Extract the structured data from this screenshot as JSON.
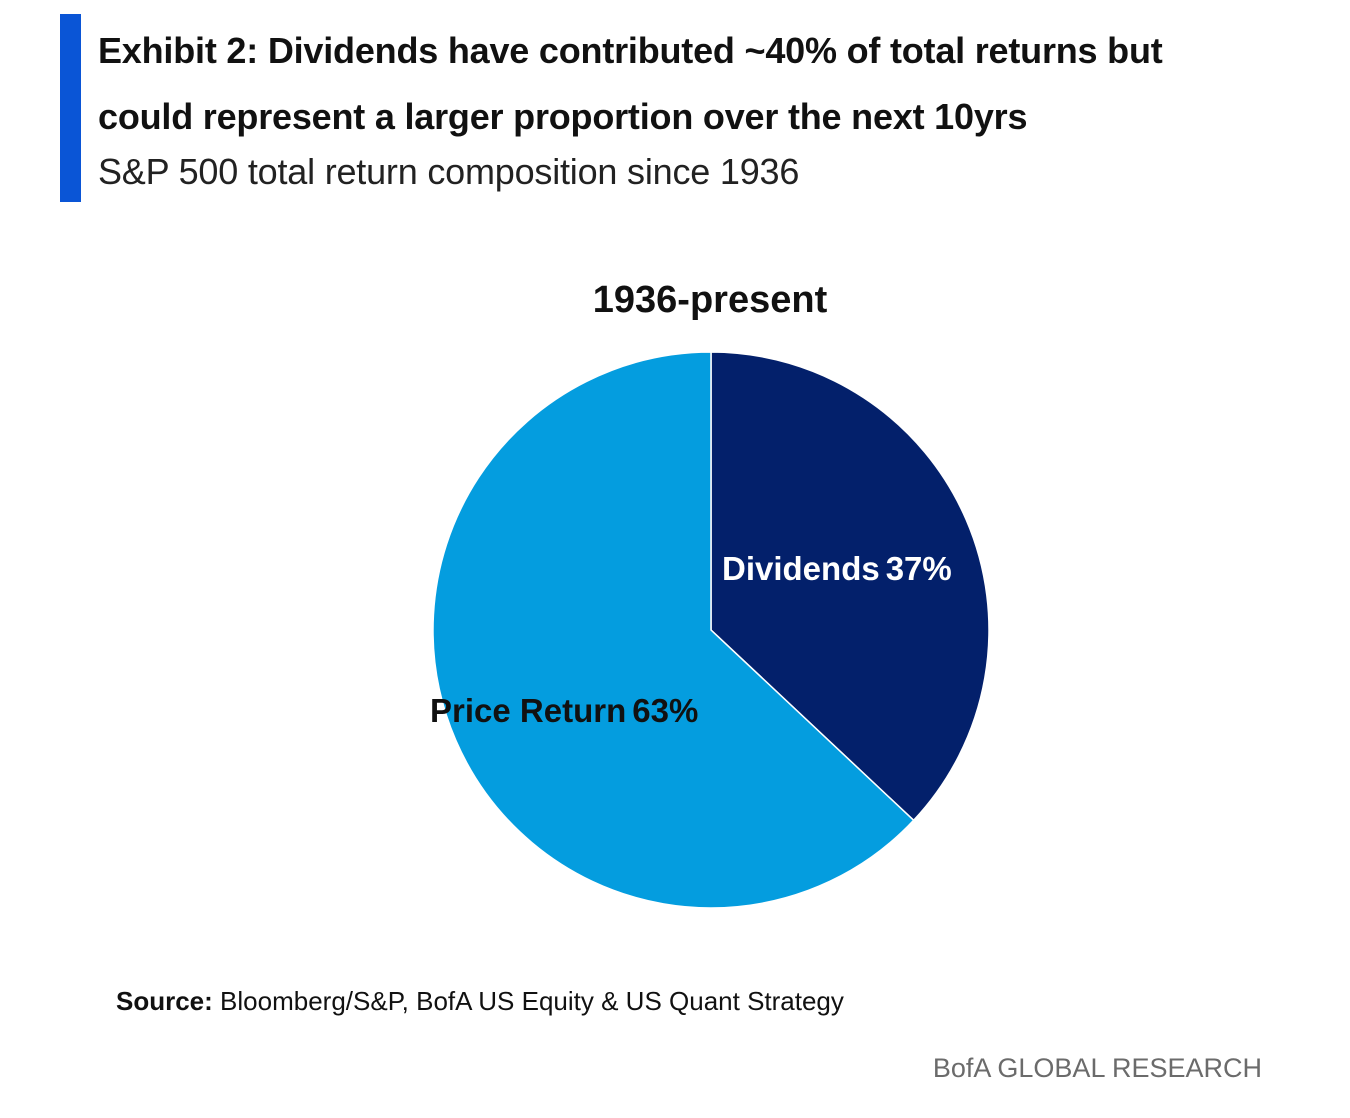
{
  "header": {
    "title_line1": "Exhibit 2: Dividends have contributed ~40% of total returns but",
    "title_line2": "could represent a larger proportion over the next 10yrs",
    "subtitle": "S&P 500 total return composition since 1936",
    "accent_color": "#0a55d6"
  },
  "chart_data": {
    "type": "pie",
    "title": "1936-present",
    "start_angle": "12 o'clock, clockwise",
    "slices": [
      {
        "label": "Dividends",
        "value": 37,
        "value_label": "37%",
        "color": "#03206b",
        "label_color": "#ffffff"
      },
      {
        "label": "Price Return",
        "value": 63,
        "value_label": "63%",
        "color": "#049ddf",
        "label_color": "#111111"
      }
    ],
    "legend": "none",
    "data_labels": "inside"
  },
  "footer": {
    "source_label": "Source:",
    "source_text": "Bloomberg/S&P, BofA US Equity & US Quant Strategy",
    "brand": "BofA GLOBAL RESEARCH"
  }
}
